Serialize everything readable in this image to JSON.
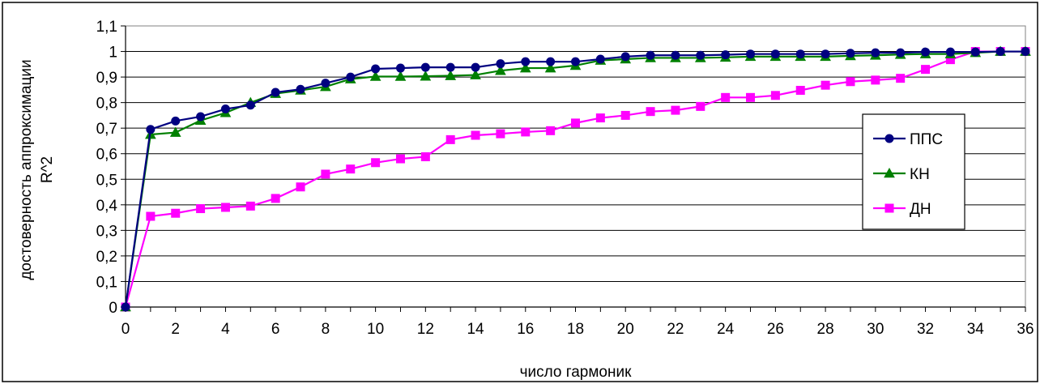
{
  "chart_data": {
    "type": "line",
    "xlabel": "число гармоник",
    "ylabel_lines": [
      "достоверность аппроксимации",
      "R^2"
    ],
    "xlim": [
      0,
      36
    ],
    "ylim": [
      0,
      1.1
    ],
    "x_ticks": [
      0,
      2,
      4,
      6,
      8,
      10,
      12,
      14,
      16,
      18,
      20,
      22,
      24,
      26,
      28,
      30,
      32,
      34,
      36
    ],
    "y_ticks": [
      "0",
      "0,1",
      "0,2",
      "0,3",
      "0,4",
      "0,5",
      "0,6",
      "0,7",
      "0,8",
      "0,9",
      "1",
      "1,1"
    ],
    "y_tick_values": [
      0,
      0.1,
      0.2,
      0.3,
      0.4,
      0.5,
      0.6,
      0.7,
      0.8,
      0.9,
      1.0,
      1.1
    ],
    "grid": "horizontal",
    "legend_position": "right",
    "x": [
      0,
      1,
      2,
      3,
      4,
      5,
      6,
      7,
      8,
      9,
      10,
      11,
      12,
      13,
      14,
      15,
      16,
      17,
      18,
      19,
      20,
      21,
      22,
      23,
      24,
      25,
      26,
      27,
      28,
      29,
      30,
      31,
      32,
      33,
      34,
      35,
      36
    ],
    "series": [
      {
        "name": "ППС",
        "color": "#000080",
        "marker": "circle",
        "values": [
          0,
          0.695,
          0.728,
          0.745,
          0.775,
          0.79,
          0.84,
          0.852,
          0.876,
          0.9,
          0.932,
          0.935,
          0.938,
          0.938,
          0.938,
          0.952,
          0.96,
          0.96,
          0.96,
          0.97,
          0.98,
          0.985,
          0.985,
          0.985,
          0.987,
          0.99,
          0.99,
          0.99,
          0.99,
          0.993,
          0.995,
          0.995,
          0.998,
          0.998,
          0.998,
          1.0,
          1.0
        ]
      },
      {
        "name": "КН",
        "color": "#008000",
        "marker": "triangle",
        "values": [
          0,
          0.675,
          0.683,
          0.73,
          0.76,
          0.8,
          0.835,
          0.848,
          0.862,
          0.892,
          0.902,
          0.902,
          0.903,
          0.905,
          0.908,
          0.925,
          0.935,
          0.935,
          0.945,
          0.965,
          0.97,
          0.975,
          0.975,
          0.975,
          0.977,
          0.98,
          0.98,
          0.98,
          0.98,
          0.983,
          0.985,
          0.988,
          0.99,
          0.99,
          0.995,
          1.0,
          1.0
        ]
      },
      {
        "name": "ДН",
        "color": "#FF00FF",
        "marker": "square",
        "values": [
          0,
          0.355,
          0.367,
          0.385,
          0.39,
          0.395,
          0.425,
          0.47,
          0.52,
          0.54,
          0.565,
          0.58,
          0.588,
          0.655,
          0.672,
          0.678,
          0.685,
          0.69,
          0.72,
          0.74,
          0.75,
          0.765,
          0.77,
          0.785,
          0.82,
          0.82,
          0.828,
          0.848,
          0.868,
          0.882,
          0.888,
          0.895,
          0.93,
          0.968,
          1.0,
          1.0,
          1.0
        ]
      }
    ]
  }
}
